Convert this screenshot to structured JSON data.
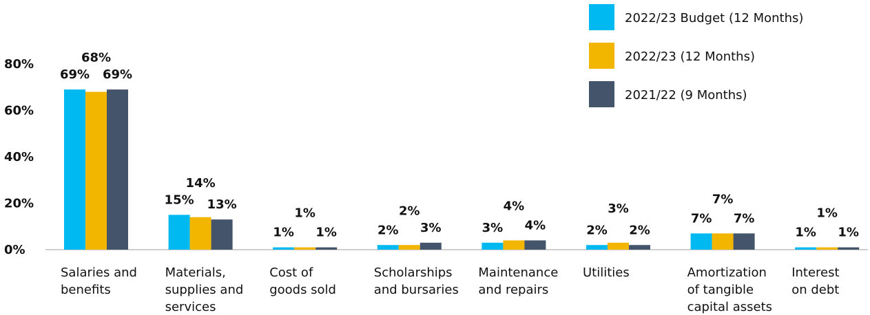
{
  "chart_data": {
    "type": "bar",
    "categories": [
      [
        "Salaries and",
        "benefits"
      ],
      [
        "Materials,",
        "supplies and",
        "services"
      ],
      [
        "Cost of",
        "goods sold"
      ],
      [
        "Scholarships",
        "and bursaries"
      ],
      [
        "Maintenance",
        "and repairs"
      ],
      [
        "Utilities"
      ],
      [
        "Amortization",
        "of tangible",
        "capital assets"
      ],
      [
        "Interest",
        "on debt"
      ]
    ],
    "series": [
      {
        "name": "2022/23 Budget (12 Months)",
        "color": "#00B9F1",
        "values": [
          69,
          15,
          1,
          2,
          3,
          2,
          7,
          1
        ],
        "labels": [
          "69%",
          "15%",
          "1%",
          "2%",
          "3%",
          "2%",
          "7%",
          "1%"
        ]
      },
      {
        "name": "2022/23 (12 Months)",
        "color": "#F3B600",
        "values": [
          68,
          14,
          1,
          2,
          4,
          3,
          7,
          1
        ],
        "labels": [
          "68%",
          "14%",
          "1%",
          "2%",
          "4%",
          "3%",
          "7%",
          "1%"
        ]
      },
      {
        "name": "2021/22 (9 Months)",
        "color": "#44546A",
        "values": [
          69,
          13,
          1,
          3,
          4,
          2,
          7,
          1
        ],
        "labels": [
          "69%",
          "13%",
          "1%",
          "3%",
          "4%",
          "2%",
          "7%",
          "1%"
        ]
      }
    ],
    "yticks": [
      "0%",
      "20%",
      "40%",
      "60%",
      "80%"
    ],
    "ylim": [
      0,
      80
    ],
    "legend": "top-right",
    "grid": false
  }
}
